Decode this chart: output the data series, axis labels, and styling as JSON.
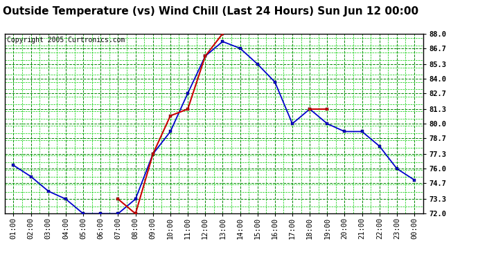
{
  "title": "Outside Temperature (vs) Wind Chill (Last 24 Hours) Sun Jun 12 00:00",
  "copyright": "Copyright 2005 Curtronics.com",
  "x_labels": [
    "01:00",
    "02:00",
    "03:00",
    "04:00",
    "05:00",
    "06:00",
    "07:00",
    "08:00",
    "09:00",
    "10:00",
    "11:00",
    "12:00",
    "13:00",
    "14:00",
    "15:00",
    "16:00",
    "17:00",
    "18:00",
    "19:00",
    "20:00",
    "21:00",
    "22:00",
    "23:00",
    "00:00"
  ],
  "blue_y": [
    76.3,
    75.3,
    74.0,
    73.3,
    72.0,
    72.0,
    72.0,
    73.3,
    77.3,
    79.3,
    82.7,
    86.0,
    87.3,
    86.7,
    85.3,
    83.7,
    80.0,
    81.3,
    80.0,
    79.3,
    79.3,
    78.0,
    76.0,
    75.0
  ],
  "red_y": [
    null,
    null,
    null,
    null,
    null,
    null,
    73.3,
    72.0,
    77.3,
    80.7,
    81.3,
    86.0,
    88.0,
    null,
    null,
    null,
    null,
    81.3,
    81.3,
    null,
    null,
    null,
    null,
    null
  ],
  "ylim": [
    72.0,
    88.0
  ],
  "y_ticks": [
    72.0,
    73.3,
    74.7,
    76.0,
    77.3,
    78.7,
    80.0,
    81.3,
    82.7,
    84.0,
    85.3,
    86.7,
    88.0
  ],
  "blue_color": "#0000CC",
  "red_color": "#CC0000",
  "grid_color_major": "#008800",
  "grid_color_minor": "#00CC00",
  "bg_color": "#FFFFFF",
  "title_bg": "#FFFFFF",
  "outer_bg": "#FFFFFF",
  "plot_border": "#000000",
  "title_fontsize": 11,
  "copyright_fontsize": 7,
  "tick_fontsize": 7.5
}
